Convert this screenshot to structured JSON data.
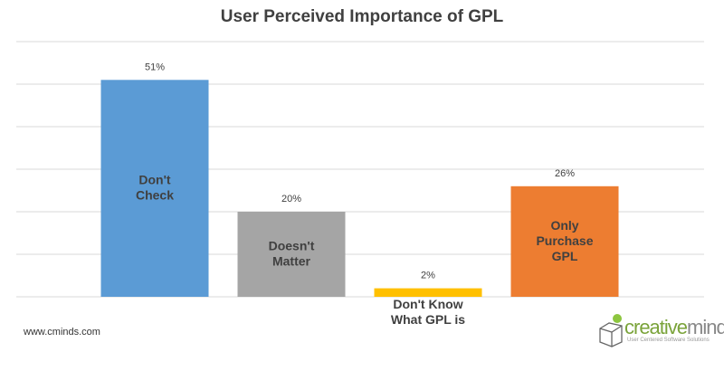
{
  "chart_data": {
    "type": "bar",
    "title": "User Perceived Importance of GPL",
    "categories": [
      [
        "Don't",
        "Check"
      ],
      [
        "Doesn't",
        "Matter"
      ],
      [
        "Don't Know",
        "What GPL is"
      ],
      [
        "Only",
        "Purchase",
        "GPL"
      ]
    ],
    "values": [
      51,
      20,
      2,
      26
    ],
    "value_labels": [
      "51%",
      "20%",
      "2%",
      "26%"
    ],
    "colors": [
      "#5b9bd5",
      "#a5a5a5",
      "#ffc000",
      "#ed7d31"
    ],
    "ylim": [
      0,
      60
    ],
    "yticks": [
      0,
      10,
      20,
      30,
      40,
      50,
      60
    ],
    "grid": true,
    "label_position": [
      "inside",
      "inside",
      "below",
      "inside"
    ]
  },
  "footer": {
    "site": "www.cminds.com"
  },
  "logo": {
    "name_a": "creative",
    "name_b": "minds",
    "tagline": "User Centered Software Solutions"
  }
}
